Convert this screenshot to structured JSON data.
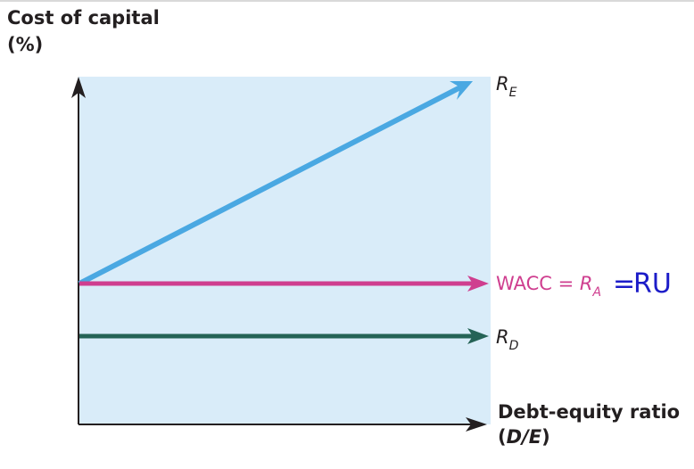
{
  "y_axis_title": {
    "line1": "Cost of capital",
    "line2": "(%)"
  },
  "x_axis_title": {
    "line1": "Debt-equity ratio",
    "line2_open": "(",
    "line2_var": "D/E",
    "line2_close": ")"
  },
  "lines": {
    "re": {
      "symbol": "R",
      "subscript": "E",
      "color": "#4aa8e2"
    },
    "wacc": {
      "text": "WACC = ",
      "symbol": "R",
      "subscript": "A",
      "color": "#cf3e8f"
    },
    "rd": {
      "symbol": "R",
      "subscript": "D",
      "color": "#256356"
    }
  },
  "annotation": {
    "equals": "=",
    "text": "RU",
    "color": "#1c1cc8"
  },
  "colors": {
    "plot_background": "#d9ecf9",
    "axis": "#231f20"
  }
}
